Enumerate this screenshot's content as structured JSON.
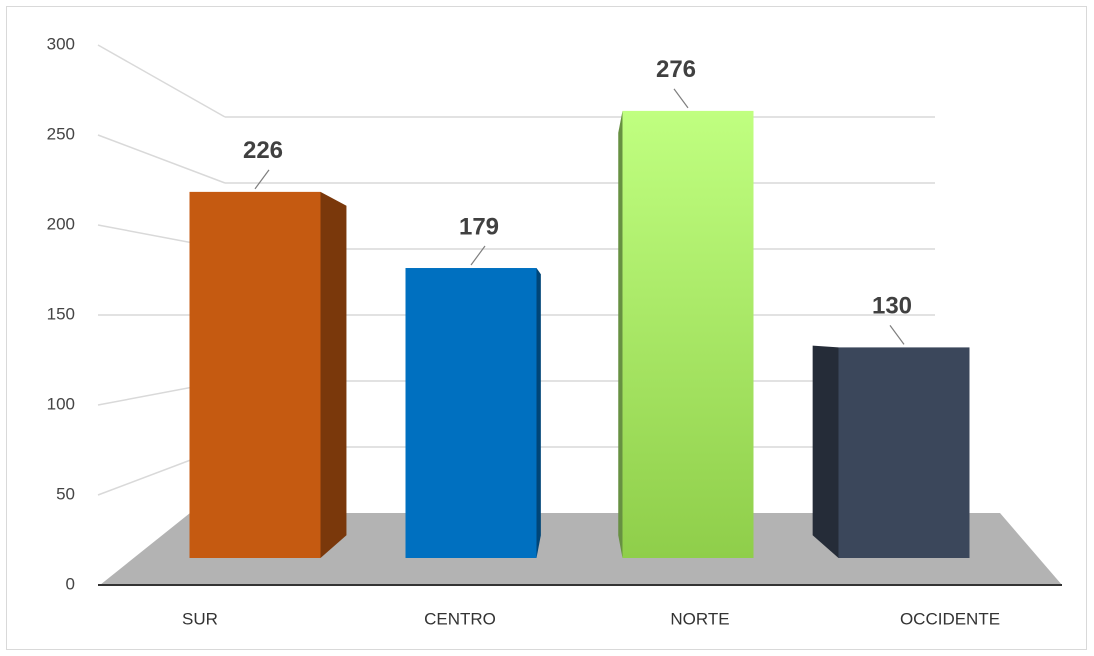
{
  "chart_data": {
    "type": "bar",
    "categories": [
      "SUR",
      "CENTRO",
      "NORTE",
      "OCCIDENTE"
    ],
    "values": [
      226,
      179,
      276,
      130
    ],
    "colors": [
      "#c55a11",
      "#0070c0",
      "#a6e86a",
      "#3b475b"
    ],
    "ylim": [
      0,
      300
    ],
    "yticks": [
      0,
      50,
      100,
      150,
      200,
      250,
      300
    ],
    "grid": true
  }
}
